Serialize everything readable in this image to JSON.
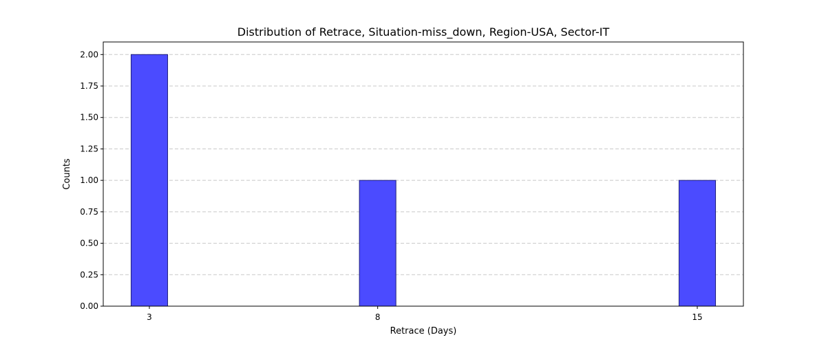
{
  "chart_data": {
    "type": "bar",
    "title": "Distribution of Retrace, Situation-miss_down, Region-USA, Sector-IT",
    "xlabel": "Retrace (Days)",
    "ylabel": "Counts",
    "x": [
      3,
      8,
      15
    ],
    "values": [
      2,
      1,
      1
    ],
    "x_tick_labels": [
      "3",
      "8",
      "15"
    ],
    "y_ticks": [
      "0.00",
      "0.25",
      "0.50",
      "0.75",
      "1.00",
      "1.25",
      "1.50",
      "1.75",
      "2.00"
    ],
    "xlim": [
      1.99,
      16.01
    ],
    "ylim": [
      0,
      2.1
    ],
    "bar_width": 0.8,
    "grid": "y-dashed",
    "legend": "none",
    "colors": {
      "bar_fill": "#4b4bff",
      "bar_edge": "#1f1f7a",
      "grid": "#c8c8c8"
    }
  }
}
